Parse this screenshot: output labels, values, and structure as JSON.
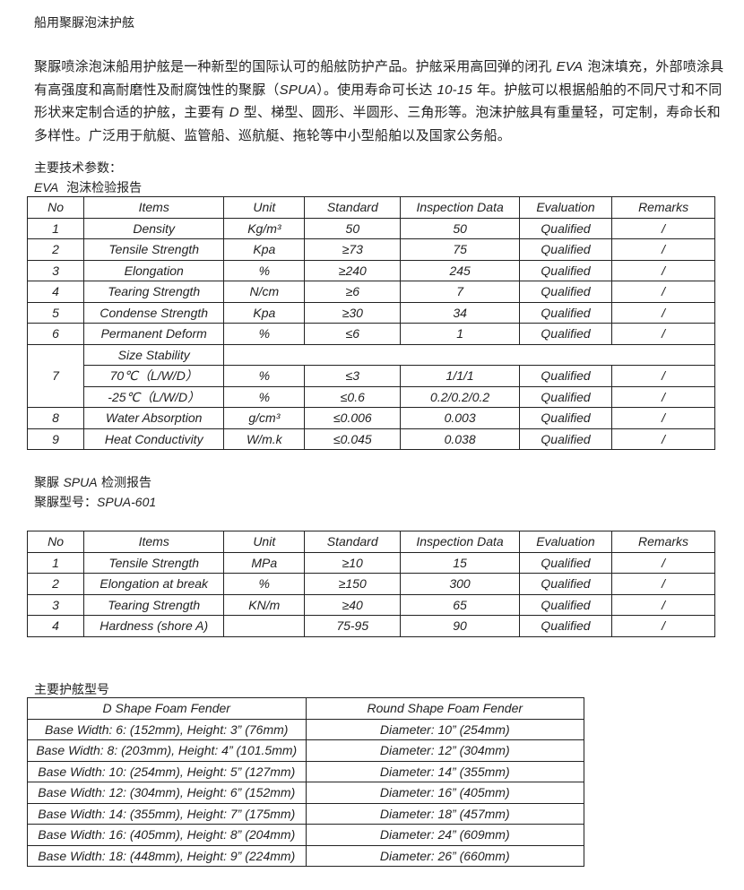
{
  "title": "船用聚脲泡沫护舷",
  "intro": [
    {
      "t": "聚脲喷涂泡沫船用护舷是一种新型的国际认可的船舷防护产品。护舷采用高回弹的闭孔 "
    },
    {
      "t": "EVA",
      "en": true
    },
    {
      "t": " 泡沫填充，外部喷涂具有高强度和高耐磨性及耐腐蚀性的聚脲（"
    },
    {
      "t": "SPUA",
      "en": true
    },
    {
      "t": "）。使用寿命可长达 "
    },
    {
      "t": "10-15",
      "en": true
    },
    {
      "t": " 年。护舷可以根据船舶的不同尺寸和不同形状来定制合适的护舷，主要有 "
    },
    {
      "t": "D",
      "en": true
    },
    {
      "t": " 型、梯型、圆形、半圆形、三角形等。泡沫护舷具有重量轻，可定制，寿命长和多样性。广泛用于航艇、监管船、巡航艇、拖轮等中小型船舶以及国家公务船。"
    }
  ],
  "params_heading": "主要技术参数：",
  "eva_heading_en": "EVA",
  "eva_heading_cn": "泡沫检验报告",
  "eva_table": {
    "headers": [
      "No",
      "Items",
      "Unit",
      "Standard",
      "Inspection Data",
      "Evaluation",
      "Remarks"
    ],
    "rows": [
      [
        "1",
        "Density",
        "Kg/m³",
        "50",
        "50",
        "Qualified",
        "/"
      ],
      [
        "2",
        "Tensile Strength",
        "Kpa",
        "≥73",
        "75",
        "Qualified",
        "/"
      ],
      [
        "3",
        "Elongation",
        "%",
        "≥240",
        "245",
        "Qualified",
        "/"
      ],
      [
        "4",
        "Tearing Strength",
        "N/cm",
        "≥6",
        "7",
        "Qualified",
        "/"
      ],
      [
        "5",
        "Condense Strength",
        "Kpa",
        "≥30",
        "34",
        "Qualified",
        "/"
      ],
      [
        "6",
        "Permanent Deform",
        "%",
        "≤6",
        "1",
        "Qualified",
        "/"
      ]
    ],
    "size_stability": {
      "no": "7",
      "label": "Size Stability",
      "rows": [
        [
          "70℃（L/W/D）",
          "%",
          "≤3",
          "1/1/1",
          "Qualified",
          "/"
        ],
        [
          "-25℃（L/W/D）",
          "%",
          "≤0.6",
          "0.2/0.2/0.2",
          "Qualified",
          "/"
        ]
      ]
    },
    "rows_after": [
      [
        "8",
        "Water Absorption",
        "g/cm³",
        "≤0.006",
        "0.003",
        "Qualified",
        "/"
      ],
      [
        "9",
        "Heat Conductivity",
        "W/m.k",
        "≤0.045",
        "0.038",
        "Qualified",
        "/"
      ]
    ]
  },
  "spua_heading": [
    {
      "t": "聚脲 "
    },
    {
      "t": "SPUA",
      "en": true
    },
    {
      "t": " 检测报告"
    }
  ],
  "spua_model": [
    {
      "t": "聚脲型号："
    },
    {
      "t": "SPUA-601",
      "en": true
    }
  ],
  "spua_table": {
    "headers": [
      "No",
      "Items",
      "Unit",
      "Standard",
      "Inspection Data",
      "Evaluation",
      "Remarks"
    ],
    "rows": [
      [
        "1",
        "Tensile Strength",
        "MPa",
        "≥10",
        "15",
        "Qualified",
        "/"
      ],
      [
        "2",
        "Elongation at break",
        "%",
        "≥150",
        "300",
        "Qualified",
        "/"
      ],
      [
        "3",
        "Tearing Strength",
        "KN/m",
        "≥40",
        "65",
        "Qualified",
        "/"
      ],
      [
        "4",
        "Hardness (shore A)",
        "",
        "75-95",
        "90",
        "Qualified",
        "/"
      ]
    ]
  },
  "models_heading": "主要护舷型号",
  "models_table": {
    "headers": [
      "D Shape Foam Fender",
      "Round Shape Foam Fender"
    ],
    "rows": [
      [
        "Base Width: 6: (152mm), Height: 3” (76mm)",
        "Diameter: 10” (254mm)"
      ],
      [
        "Base Width: 8: (203mm), Height: 4” (101.5mm)",
        "Diameter: 12” (304mm)"
      ],
      [
        "Base Width: 10: (254mm), Height: 5” (127mm)",
        "Diameter: 14” (355mm)"
      ],
      [
        "Base Width: 12: (304mm), Height: 6” (152mm)",
        "Diameter: 16” (405mm)"
      ],
      [
        "Base Width: 14: (355mm), Height: 7” (175mm)",
        "Diameter: 18” (457mm)"
      ],
      [
        "Base Width: 16: (405mm), Height: 8” (204mm)",
        "Diameter: 24” (609mm)"
      ],
      [
        "Base Width: 18: (448mm), Height: 9” (224mm)",
        "Diameter: 26” (660mm)"
      ]
    ]
  }
}
